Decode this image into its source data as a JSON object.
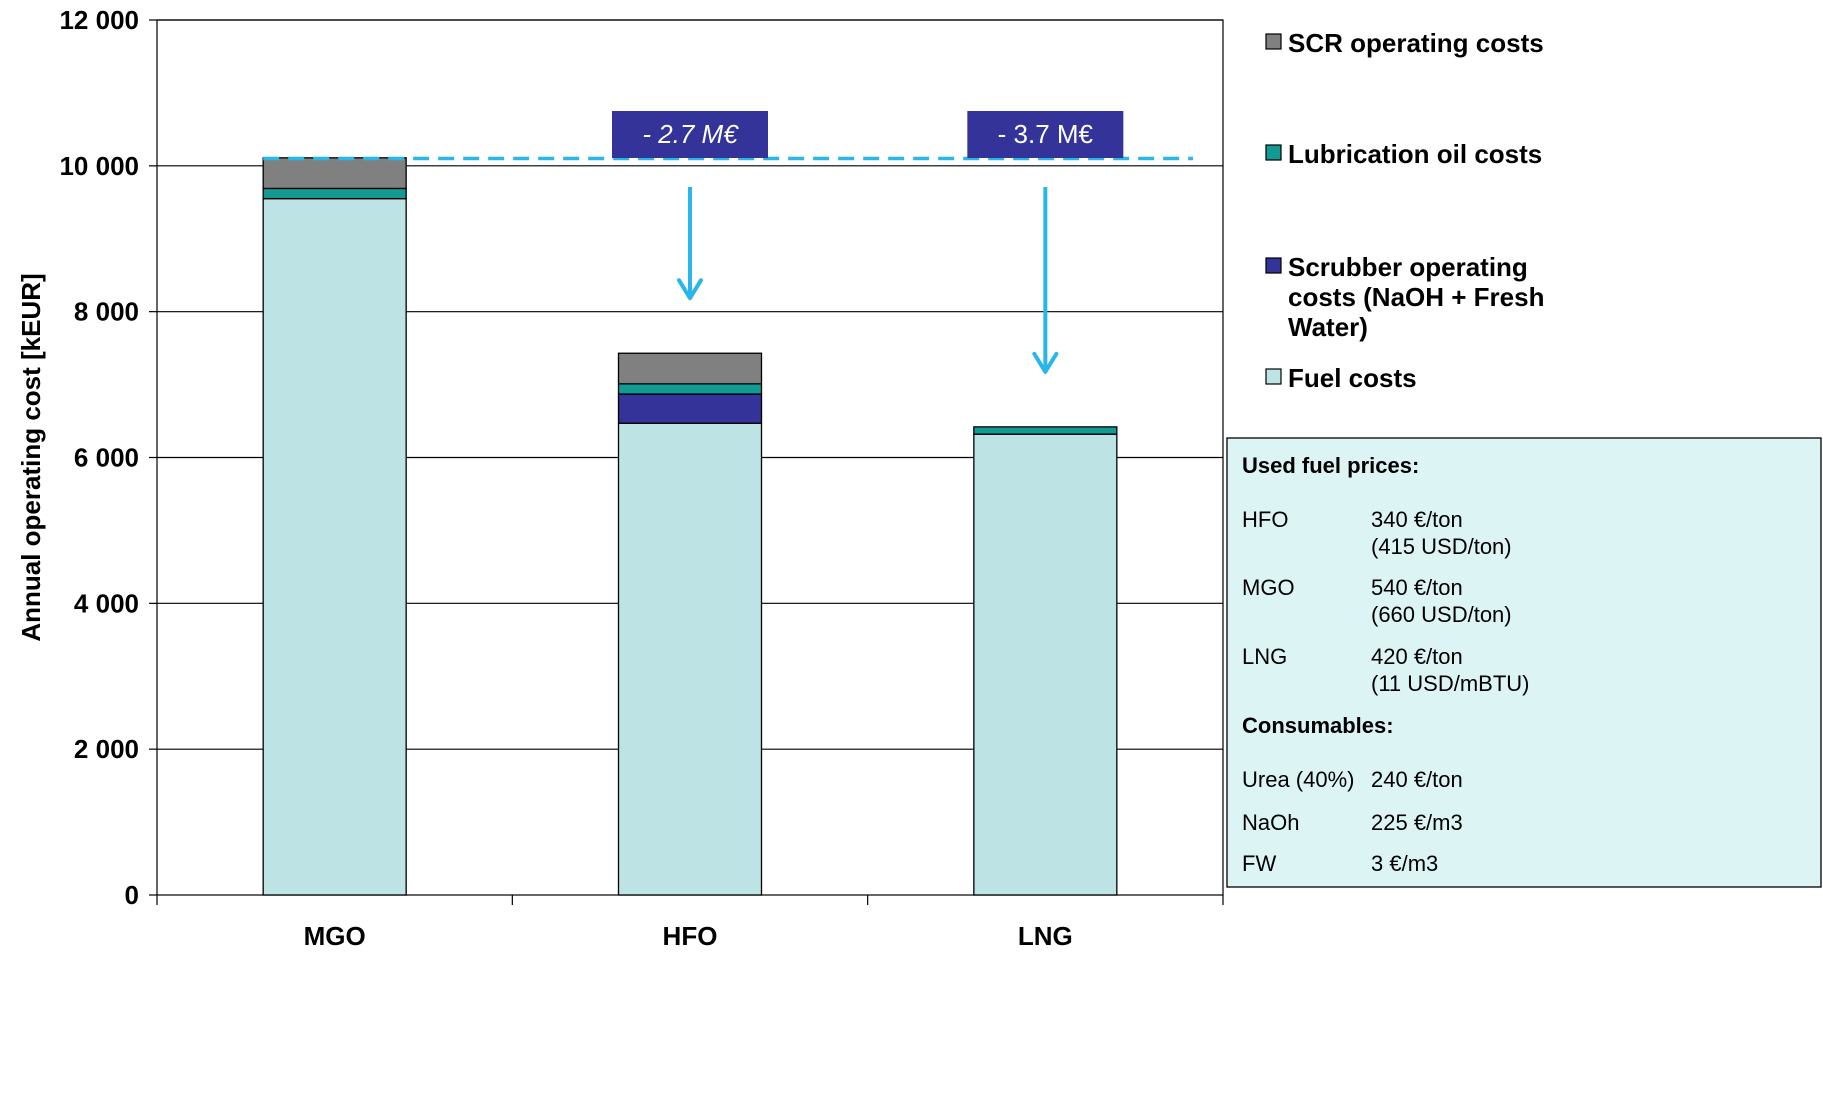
{
  "chart_data": {
    "type": "bar",
    "stacked": true,
    "categories": [
      "MGO",
      "HFO",
      "LNG"
    ],
    "ylabel": "Annual operating cost [kEUR]",
    "ylim": [
      0,
      12000
    ],
    "yticks": [
      0,
      2000,
      4000,
      6000,
      8000,
      10000,
      12000
    ],
    "ytick_labels": [
      "0",
      "2 000",
      "4 000",
      "6 000",
      "8 000",
      "10 000",
      "12 000"
    ],
    "grid": true,
    "legend_position": "right",
    "series": [
      {
        "name": "Fuel costs",
        "color": "#bde3e5",
        "values": [
          9550,
          6470,
          6320
        ]
      },
      {
        "name": "Scrubber operating costs (NaOH + Fresh Water)",
        "color": "#333399",
        "values": [
          0,
          400,
          0
        ]
      },
      {
        "name": "Lubrication oil costs",
        "color": "#129a93",
        "values": [
          140,
          140,
          100
        ]
      },
      {
        "name": "SCR operating costs",
        "color": "#808080",
        "values": [
          420,
          420,
          0
        ]
      }
    ],
    "legend": [
      {
        "lines": [
          "SCR operating costs"
        ],
        "color": "#808080"
      },
      {
        "lines": [
          "Lubrication oil costs"
        ],
        "color": "#129a93"
      },
      {
        "lines": [
          "Scrubber operating",
          "costs (NaOH + Fresh",
          "Water)"
        ],
        "color": "#333399"
      },
      {
        "lines": [
          "Fuel costs"
        ],
        "color": "#bde3e5"
      }
    ],
    "reference_line": {
      "value": 10100,
      "color": "#29b6e8",
      "style": "dashed"
    },
    "annotations": [
      {
        "category": "HFO",
        "text": "- 2.7 M€",
        "italic": true
      },
      {
        "category": "LNG",
        "text": "- 3.7 M€",
        "italic": false
      }
    ],
    "annotation_color": "#333399",
    "arrow_color": "#29b6e8"
  },
  "info_box": {
    "fuel_heading": "Used fuel prices:",
    "fuel_prices": [
      {
        "fuel": "HFO",
        "price": "340 €/ton",
        "note": "(415 USD/ton)"
      },
      {
        "fuel": "MGO",
        "price": "540 €/ton",
        "note": "(660 USD/ton)"
      },
      {
        "fuel": "LNG",
        "price": "420 €/ton",
        "note": "(11 USD/mBTU)"
      }
    ],
    "consumables_heading": "Consumables:",
    "consumables": [
      {
        "item": "Urea (40%)",
        "price": "240 €/ton"
      },
      {
        "item": "NaOh",
        "price": "225 €/m3"
      },
      {
        "item": "FW",
        "price": "3 €/m3"
      }
    ]
  }
}
